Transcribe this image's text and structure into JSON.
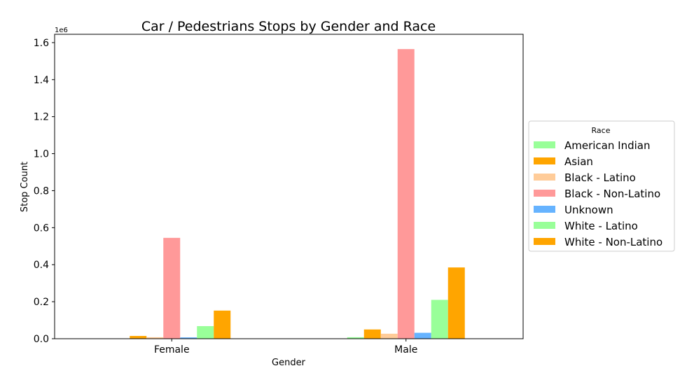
{
  "chart_data": {
    "type": "bar",
    "title": "Car / Pedestrians Stops by Gender and Race",
    "xlabel": "Gender",
    "ylabel": "Stop Count",
    "offset_label": "1e6",
    "categories": [
      "Female",
      "Male"
    ],
    "y_ticks": [
      0.0,
      0.2,
      0.4,
      0.6,
      0.8,
      1.0,
      1.2,
      1.4,
      1.6
    ],
    "y_tick_labels": [
      "0.0",
      "0.2",
      "0.4",
      "0.6",
      "0.8",
      "1.0",
      "1.2",
      "1.4",
      "1.6"
    ],
    "ylim": [
      0,
      1.645
    ],
    "legend": {
      "title": "Race",
      "placement": "outside-right"
    },
    "series": [
      {
        "name": "American Indian",
        "color": "#99ff99",
        "values": [
          0.001,
          0.008
        ]
      },
      {
        "name": "Asian",
        "color": "#ffa500",
        "values": [
          0.015,
          0.05
        ]
      },
      {
        "name": "Black - Latino",
        "color": "#ffcc99",
        "values": [
          0.008,
          0.027
        ]
      },
      {
        "name": "Black - Non-Latino",
        "color": "#ff9999",
        "values": [
          0.545,
          1.565
        ]
      },
      {
        "name": "Unknown",
        "color": "#66b3ff",
        "values": [
          0.007,
          0.032
        ]
      },
      {
        "name": "White - Latino",
        "color": "#99ff99",
        "values": [
          0.068,
          0.21
        ]
      },
      {
        "name": "White - Non-Latino",
        "color": "#ffa500",
        "values": [
          0.152,
          0.385
        ]
      }
    ]
  }
}
